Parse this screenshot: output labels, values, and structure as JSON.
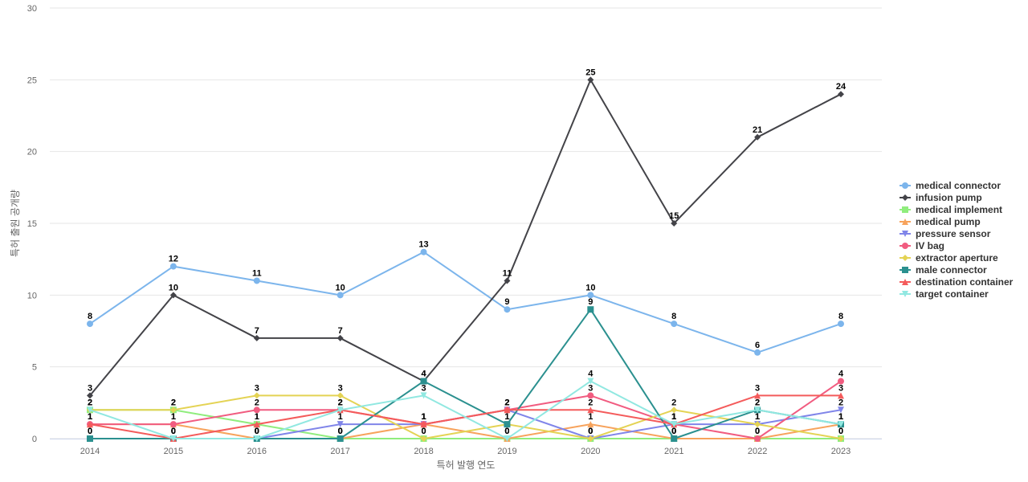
{
  "chart_data": {
    "type": "line",
    "title": "",
    "xlabel": "특허 발행 연도",
    "ylabel": "특허 출원 공개량",
    "ylim": [
      0,
      30
    ],
    "yticks": [
      0,
      5,
      10,
      15,
      20,
      25,
      30
    ],
    "grid": true,
    "legend_position": "right",
    "categories": [
      "2014",
      "2015",
      "2016",
      "2017",
      "2018",
      "2019",
      "2020",
      "2021",
      "2022",
      "2023"
    ],
    "series": [
      {
        "name": "medical connector",
        "color": "#7cb5ec",
        "marker": "circle",
        "values": [
          8,
          12,
          11,
          10,
          13,
          9,
          10,
          8,
          6,
          8
        ]
      },
      {
        "name": "infusion pump",
        "color": "#434348",
        "marker": "diamond",
        "values": [
          3,
          10,
          7,
          7,
          4,
          11,
          25,
          15,
          21,
          24
        ]
      },
      {
        "name": "medical implement",
        "color": "#90ed7d",
        "marker": "square",
        "values": [
          2,
          2,
          1,
          0,
          0,
          0,
          0,
          0,
          0,
          0
        ]
      },
      {
        "name": "medical pump",
        "color": "#f7a35c",
        "marker": "triangle",
        "values": [
          1,
          1,
          0,
          0,
          1,
          0,
          1,
          0,
          0,
          1
        ]
      },
      {
        "name": "pressure sensor",
        "color": "#8085e9",
        "marker": "triangle-down",
        "values": [
          0,
          0,
          0,
          1,
          1,
          2,
          0,
          1,
          1,
          2
        ]
      },
      {
        "name": "IV bag",
        "color": "#f15c80",
        "marker": "circle",
        "values": [
          1,
          1,
          2,
          2,
          1,
          2,
          3,
          1,
          0,
          4
        ]
      },
      {
        "name": "extractor aperture",
        "color": "#e4d354",
        "marker": "diamond",
        "values": [
          2,
          2,
          3,
          3,
          0,
          1,
          0,
          2,
          1,
          0
        ]
      },
      {
        "name": "male connector",
        "color": "#2b908f",
        "marker": "square",
        "values": [
          0,
          0,
          0,
          0,
          4,
          1,
          9,
          0,
          2,
          1
        ]
      },
      {
        "name": "destination container",
        "color": "#f45b5b",
        "marker": "triangle",
        "values": [
          1,
          0,
          1,
          2,
          1,
          2,
          2,
          1,
          3,
          3
        ]
      },
      {
        "name": "target container",
        "color": "#91e8e1",
        "marker": "triangle-down",
        "values": [
          2,
          0,
          0,
          2,
          3,
          0,
          4,
          1,
          2,
          1
        ]
      }
    ]
  }
}
